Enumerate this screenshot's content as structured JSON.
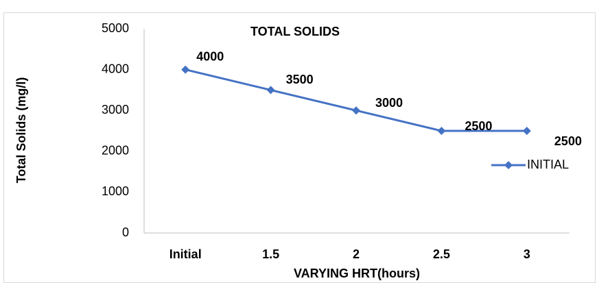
{
  "chart_data": {
    "type": "line",
    "title": "TOTAL SOLIDS",
    "x_label": "VARYING HRT(hours)",
    "y_label": "Total Solids (mg/l)",
    "categories": [
      "Initial",
      "1.5",
      "2",
      "2.5",
      "3"
    ],
    "series": [
      {
        "name": "INITIAL",
        "color": "#4472c4",
        "values": [
          4000,
          3500,
          3000,
          2500,
          2500
        ]
      }
    ],
    "ylim": [
      0,
      5000
    ],
    "yticks": [
      0,
      1000,
      2000,
      3000,
      4000,
      5000
    ],
    "grid": false,
    "legend": "right",
    "data_labels": true
  }
}
